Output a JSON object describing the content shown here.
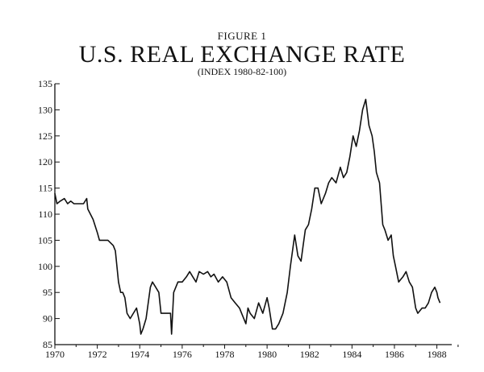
{
  "header": {
    "figure_label": "FIGURE 1",
    "title": "U.S. REAL EXCHANGE RATE",
    "subtitle": "(INDEX 1980-82-100)"
  },
  "chart_data": {
    "type": "line",
    "title": "U.S. REAL EXCHANGE RATE",
    "subtitle": "(INDEX 1980-82-100)",
    "xlabel": "",
    "ylabel": "",
    "xlim": [
      1970,
      1988.7
    ],
    "ylim": [
      85,
      135
    ],
    "x_ticks": [
      1970,
      1972,
      1974,
      1976,
      1978,
      1980,
      1982,
      1984,
      1986,
      1988
    ],
    "y_ticks": [
      85,
      90,
      95,
      100,
      105,
      110,
      115,
      120,
      125,
      130,
      135
    ],
    "grid": false,
    "line_color": "#111111",
    "series": [
      {
        "x": [
          1970.0,
          1970.1,
          1970.25,
          1970.45,
          1970.6,
          1970.75,
          1970.9,
          1971.0,
          1971.15,
          1971.35,
          1971.5,
          1971.55,
          1971.8,
          1972.0,
          1972.1,
          1972.2,
          1972.5,
          1972.75,
          1972.85,
          1973.0,
          1973.1,
          1973.2,
          1973.3,
          1973.4,
          1973.55,
          1973.7,
          1973.85,
          1974.0,
          1974.05,
          1974.15,
          1974.3,
          1974.5,
          1974.6,
          1974.75,
          1974.9,
          1975.0,
          1975.2,
          1975.45,
          1975.5,
          1975.6,
          1975.8,
          1976.0,
          1976.2,
          1976.35,
          1976.5,
          1976.65,
          1976.8,
          1977.0,
          1977.2,
          1977.35,
          1977.5,
          1977.7,
          1977.9,
          1978.1,
          1978.3,
          1978.5,
          1978.7,
          1978.8,
          1979.0,
          1979.1,
          1979.2,
          1979.4,
          1979.6,
          1979.8,
          1980.0,
          1980.1,
          1980.25,
          1980.4,
          1980.55,
          1980.75,
          1980.95,
          1981.1,
          1981.3,
          1981.45,
          1981.6,
          1981.7,
          1981.8,
          1981.95,
          1982.1,
          1982.25,
          1982.4,
          1982.55,
          1982.75,
          1982.9,
          1983.05,
          1983.25,
          1983.45,
          1983.6,
          1983.75,
          1983.9,
          1984.05,
          1984.2,
          1984.35,
          1984.5,
          1984.65,
          1984.8,
          1984.95,
          1985.05,
          1985.15,
          1985.3,
          1985.45,
          1985.55,
          1985.7,
          1985.85,
          1985.95,
          1986.05,
          1986.2,
          1986.4,
          1986.55,
          1986.7,
          1986.85,
          1987.0,
          1987.1,
          1987.3,
          1987.45,
          1987.6,
          1987.75,
          1987.9,
          1988.0,
          1988.05,
          1988.15
        ],
        "values": [
          114,
          112,
          112.5,
          113,
          112,
          112.5,
          112,
          112,
          112,
          112,
          113,
          111,
          109,
          106.5,
          105,
          105,
          105,
          104,
          103,
          97,
          95,
          95,
          94,
          91,
          90,
          91,
          92,
          89,
          87,
          88,
          90,
          96,
          97,
          96,
          95,
          91,
          91,
          91,
          87,
          95,
          97,
          97,
          98,
          99,
          98,
          97,
          99,
          98.5,
          99,
          98,
          98.5,
          97,
          98,
          97,
          94,
          93,
          92,
          91,
          89,
          92,
          91,
          90,
          93,
          91,
          94,
          92,
          88,
          88,
          89,
          91,
          95,
          100,
          106,
          102,
          101,
          104,
          107,
          108,
          111,
          115,
          115,
          112,
          114,
          116,
          117,
          116,
          119,
          117,
          118,
          121,
          125,
          123,
          126,
          130,
          132,
          127,
          125,
          122,
          118,
          116,
          108,
          107,
          105,
          106,
          102,
          100,
          97,
          98,
          99,
          97,
          96,
          92,
          91,
          92,
          92,
          93,
          95,
          96,
          95,
          94,
          93
        ]
      }
    ]
  }
}
